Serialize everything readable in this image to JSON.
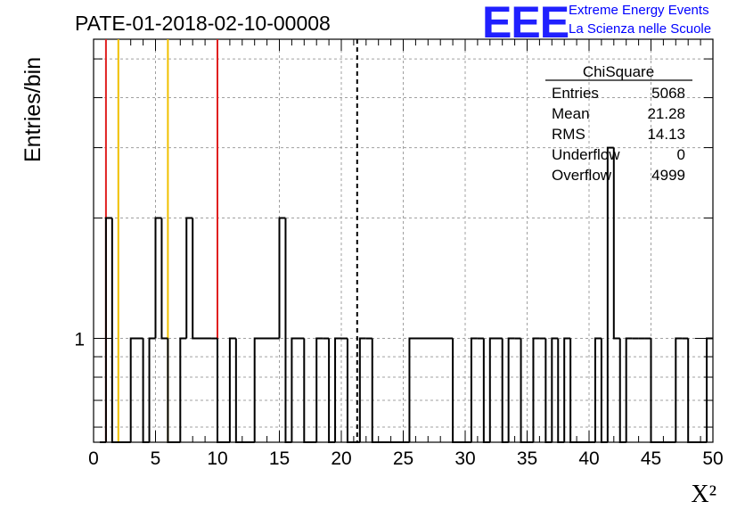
{
  "chart_data": {
    "type": "histogram",
    "title": "PATE-01-2018-02-10-00008",
    "xlabel": "X²",
    "ylabel": "Entries/bin",
    "xlim": [
      0,
      50
    ],
    "ylim": [
      0.55,
      5.6
    ],
    "y_scale": "log",
    "x_ticks": [
      "0",
      "5",
      "10",
      "15",
      "20",
      "25",
      "30",
      "35",
      "40",
      "45",
      "50"
    ],
    "y_tick_labels": [
      {
        "value": 1,
        "label": "1"
      }
    ],
    "grid": true,
    "bin_width": 0.5,
    "bins": [
      {
        "x": 0.5,
        "count": 0
      },
      {
        "x": 1.0,
        "count": 2
      },
      {
        "x": 1.5,
        "count": 0
      },
      {
        "x": 3.0,
        "count": 1
      },
      {
        "x": 4.0,
        "count": 0
      },
      {
        "x": 4.5,
        "count": 1
      },
      {
        "x": 5.0,
        "count": 2
      },
      {
        "x": 5.5,
        "count": 1
      },
      {
        "x": 6.0,
        "count": 0
      },
      {
        "x": 7.0,
        "count": 1
      },
      {
        "x": 7.5,
        "count": 2
      },
      {
        "x": 8.0,
        "count": 1
      },
      {
        "x": 9.5,
        "count": 1
      },
      {
        "x": 10.0,
        "count": 0
      },
      {
        "x": 11.0,
        "count": 1
      },
      {
        "x": 11.5,
        "count": 0
      },
      {
        "x": 13.0,
        "count": 1
      },
      {
        "x": 15.0,
        "count": 2
      },
      {
        "x": 15.5,
        "count": 0
      },
      {
        "x": 16.0,
        "count": 1
      },
      {
        "x": 17.0,
        "count": 0
      },
      {
        "x": 18.0,
        "count": 1
      },
      {
        "x": 18.5,
        "count": 1
      },
      {
        "x": 19.0,
        "count": 0
      },
      {
        "x": 19.5,
        "count": 1
      },
      {
        "x": 20.0,
        "count": 1
      },
      {
        "x": 20.5,
        "count": 0
      },
      {
        "x": 21.0,
        "count": 0
      },
      {
        "x": 21.5,
        "count": 1
      },
      {
        "x": 22.0,
        "count": 1
      },
      {
        "x": 22.5,
        "count": 0
      },
      {
        "x": 25.5,
        "count": 1
      },
      {
        "x": 29.0,
        "count": 0
      },
      {
        "x": 30.5,
        "count": 1
      },
      {
        "x": 31.0,
        "count": 1
      },
      {
        "x": 31.5,
        "count": 0
      },
      {
        "x": 32.0,
        "count": 1
      },
      {
        "x": 33.0,
        "count": 0
      },
      {
        "x": 33.5,
        "count": 1
      },
      {
        "x": 34.0,
        "count": 1
      },
      {
        "x": 34.5,
        "count": 0
      },
      {
        "x": 35.5,
        "count": 1
      },
      {
        "x": 36.0,
        "count": 1
      },
      {
        "x": 36.5,
        "count": 0
      },
      {
        "x": 37.0,
        "count": 1
      },
      {
        "x": 37.5,
        "count": 0
      },
      {
        "x": 38.0,
        "count": 1
      },
      {
        "x": 38.5,
        "count": 0
      },
      {
        "x": 40.5,
        "count": 1
      },
      {
        "x": 41.0,
        "count": 0
      },
      {
        "x": 41.5,
        "count": 3
      },
      {
        "x": 42.0,
        "count": 1
      },
      {
        "x": 42.5,
        "count": 0
      },
      {
        "x": 43.0,
        "count": 1
      },
      {
        "x": 43.5,
        "count": 1
      },
      {
        "x": 44.0,
        "count": 1
      },
      {
        "x": 44.5,
        "count": 1
      },
      {
        "x": 45.0,
        "count": 0
      },
      {
        "x": 47.0,
        "count": 1
      },
      {
        "x": 47.5,
        "count": 1
      },
      {
        "x": 48.0,
        "count": 0
      },
      {
        "x": 49.5,
        "count": 1
      }
    ],
    "vertical_lines": [
      {
        "x": 1.0,
        "color": "#e02020",
        "style": "solid"
      },
      {
        "x": 2.0,
        "color": "#f0c000",
        "style": "solid"
      },
      {
        "x": 6.0,
        "color": "#f0c000",
        "style": "solid"
      },
      {
        "x": 10.0,
        "color": "#e02020",
        "style": "solid"
      },
      {
        "x": 21.28,
        "color": "#000000",
        "style": "dashed"
      }
    ],
    "stats_box": {
      "title": "ChiSquare",
      "rows": [
        {
          "label": "Entries",
          "value": "5068"
        },
        {
          "label": "Mean",
          "value": "21.28"
        },
        {
          "label": "RMS",
          "value": "14.13"
        },
        {
          "label": "Underflow",
          "value": "0"
        },
        {
          "label": "Overflow",
          "value": "4999"
        }
      ]
    }
  },
  "logo": {
    "mark": "EEE",
    "line1": "Extreme Energy Events",
    "line2": "La Scienza nelle Scuole",
    "color": "#0000ff"
  }
}
